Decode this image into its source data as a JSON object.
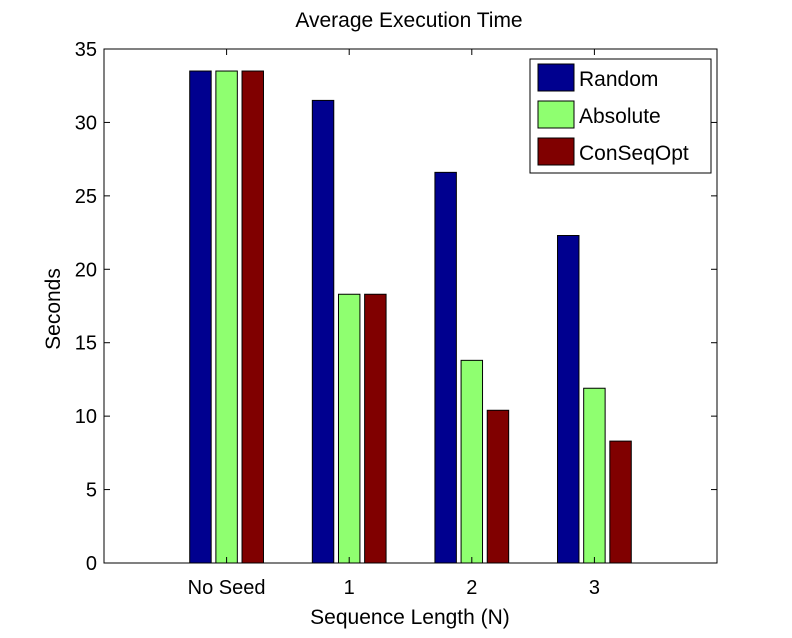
{
  "chart_data": {
    "type": "bar",
    "title": "Average Execution Time",
    "xlabel": "Sequence Length (N)",
    "ylabel": "Seconds",
    "categories": [
      "No Seed",
      "1",
      "2",
      "3"
    ],
    "series": [
      {
        "name": "Random",
        "color": "#00008f",
        "values": [
          33.5,
          31.5,
          26.6,
          22.3
        ]
      },
      {
        "name": "Absolute",
        "color": "#8fff70",
        "values": [
          33.5,
          18.3,
          13.8,
          11.9
        ]
      },
      {
        "name": "ConSeqOpt",
        "color": "#800000",
        "values": [
          33.5,
          18.3,
          10.4,
          8.3
        ]
      }
    ],
    "ylim": [
      0,
      35
    ],
    "yticks": [
      "0",
      "5",
      "10",
      "15",
      "20",
      "25",
      "30",
      "35"
    ],
    "xlim": [
      0,
      5
    ],
    "grid": false,
    "legend_position": "top-right"
  }
}
